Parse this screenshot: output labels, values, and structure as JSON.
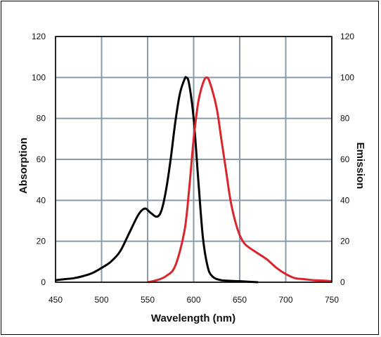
{
  "chart_data": {
    "type": "line",
    "title": "",
    "xlabel": "Wavelength (nm)",
    "ylabel_left": "Absorption",
    "ylabel_right": "Emission",
    "xlim": [
      450,
      750
    ],
    "ylim": [
      0,
      120
    ],
    "x_ticks": [
      450,
      500,
      550,
      600,
      650,
      700,
      750
    ],
    "y_ticks": [
      0,
      20,
      40,
      60,
      80,
      100,
      120
    ],
    "grid": true,
    "grid_color": "#8a9aa8",
    "series": [
      {
        "color": "#000000",
        "points": [
          [
            450,
            1
          ],
          [
            460,
            1.5
          ],
          [
            470,
            2
          ],
          [
            480,
            3
          ],
          [
            490,
            4.5
          ],
          [
            500,
            7
          ],
          [
            510,
            10
          ],
          [
            520,
            15
          ],
          [
            530,
            24
          ],
          [
            540,
            33
          ],
          [
            547,
            36
          ],
          [
            553,
            34
          ],
          [
            560,
            32
          ],
          [
            565,
            35
          ],
          [
            570,
            45
          ],
          [
            575,
            60
          ],
          [
            580,
            78
          ],
          [
            585,
            92
          ],
          [
            590,
            99
          ],
          [
            592,
            100
          ],
          [
            595,
            97
          ],
          [
            600,
            80
          ],
          [
            605,
            50
          ],
          [
            610,
            22
          ],
          [
            615,
            8
          ],
          [
            620,
            3
          ],
          [
            630,
            1
          ],
          [
            650,
            0.5
          ],
          [
            670,
            0
          ]
        ]
      },
      {
        "color": "#d9262c",
        "points": [
          [
            550,
            0
          ],
          [
            560,
            1
          ],
          [
            570,
            3
          ],
          [
            580,
            8
          ],
          [
            590,
            25
          ],
          [
            595,
            45
          ],
          [
            600,
            70
          ],
          [
            605,
            88
          ],
          [
            610,
            97
          ],
          [
            614,
            100
          ],
          [
            618,
            97
          ],
          [
            625,
            85
          ],
          [
            630,
            70
          ],
          [
            635,
            55
          ],
          [
            640,
            40
          ],
          [
            645,
            30
          ],
          [
            650,
            23
          ],
          [
            655,
            19
          ],
          [
            660,
            17
          ],
          [
            670,
            14
          ],
          [
            680,
            11
          ],
          [
            690,
            7
          ],
          [
            700,
            4
          ],
          [
            710,
            2
          ],
          [
            720,
            1.5
          ],
          [
            730,
            1
          ],
          [
            740,
            0.8
          ],
          [
            750,
            0.5
          ]
        ]
      }
    ]
  }
}
